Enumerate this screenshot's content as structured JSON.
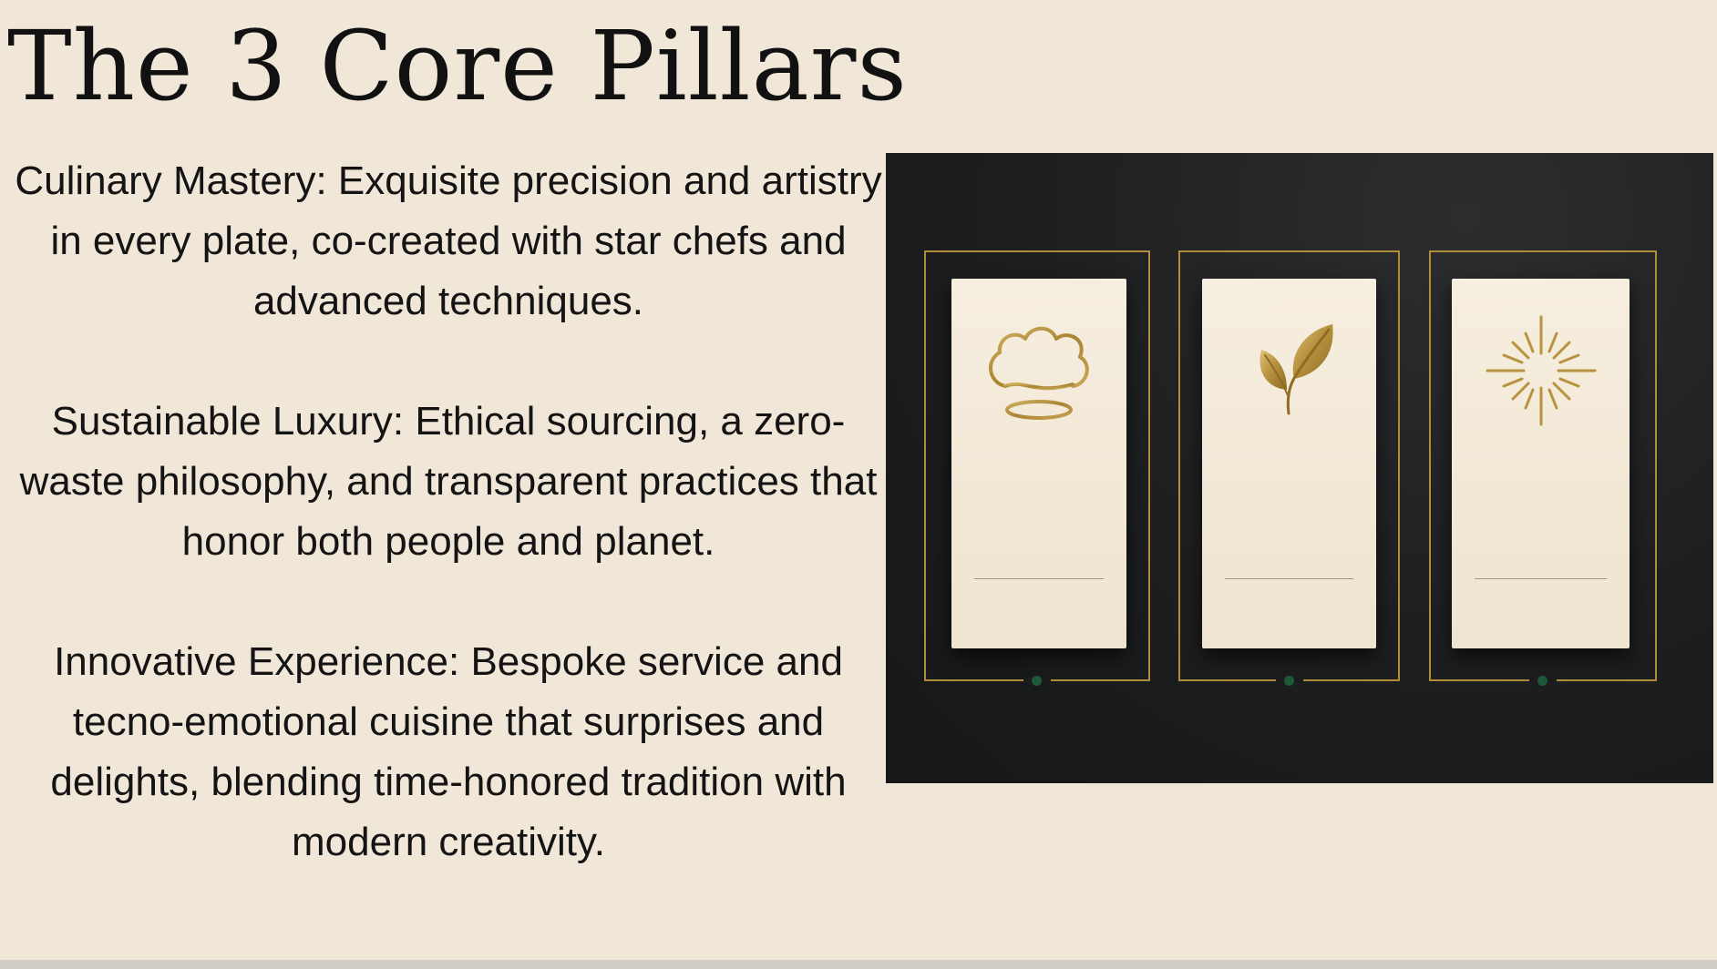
{
  "slide": {
    "title": "The 3 Core Pillars",
    "pillars": [
      {
        "text": "Culinary Mastery: Exquisite precision and artistry in every plate, co-created with star chefs and advanced techniques."
      },
      {
        "text": "Sustainable Luxury: Ethical sourcing, a zero-waste philosophy, and transparent practices that honor both people and planet."
      },
      {
        "text": "Innovative Experience: Bespoke service and tecno-emotional cuisine that surprises and delights, blending time-honored tradition with modern creativity."
      }
    ]
  },
  "image": {
    "background_color": "#1d1e20",
    "card_color": "#f3ead9",
    "accent_gold": "#b08d3a",
    "dot_green": "#1f5a38",
    "cards": [
      {
        "icon": "chef-hat-icon"
      },
      {
        "icon": "leaf-icon"
      },
      {
        "icon": "sunburst-icon"
      }
    ]
  }
}
